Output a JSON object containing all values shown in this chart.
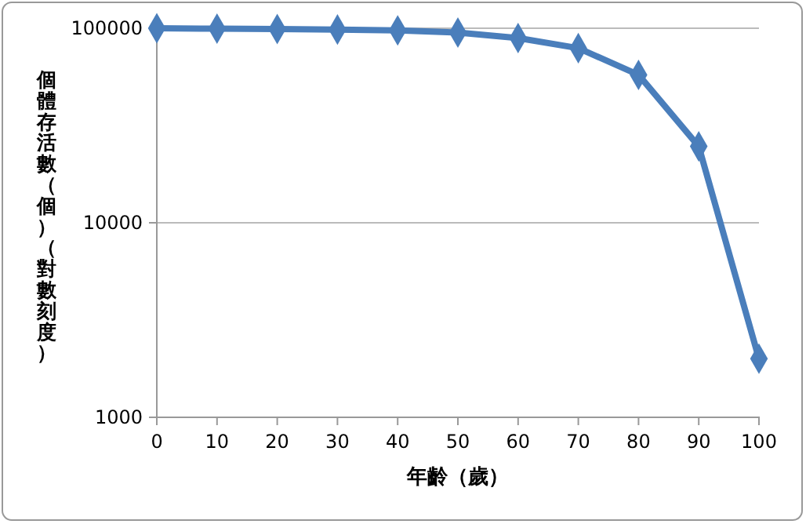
{
  "chart_data": {
    "type": "line",
    "xlabel": "年齡（歲）",
    "ylabel": "個體存活數（個）（對數刻度）",
    "x": [
      0,
      10,
      20,
      30,
      40,
      50,
      60,
      70,
      80,
      90,
      100
    ],
    "series": [
      {
        "color": "#4a7ebb",
        "values": [
          100000,
          99500,
          99000,
          98500,
          97500,
          95000,
          89000,
          79000,
          57600,
          24700,
          2000
        ]
      }
    ],
    "xlim": [
      0,
      100
    ],
    "xticks": [
      0,
      10,
      20,
      30,
      40,
      50,
      60,
      70,
      80,
      90,
      100
    ],
    "ylim": [
      1000,
      100000
    ],
    "yticks": [
      1000,
      10000,
      100000
    ],
    "log": "y",
    "grid": "y",
    "marker": "diamond",
    "line_style": "solid"
  }
}
